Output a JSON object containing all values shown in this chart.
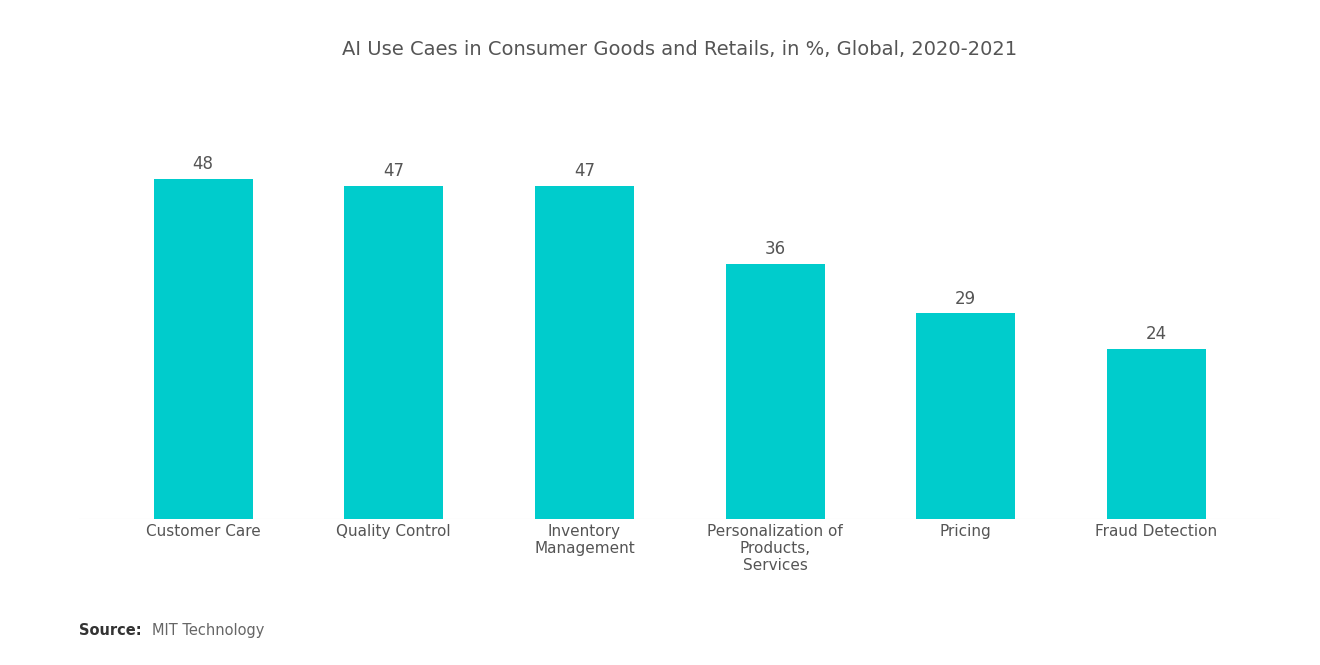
{
  "title": "AI Use Caes in Consumer Goods and Retails, in %, Global, 2020-2021",
  "categories": [
    "Customer Care",
    "Quality Control",
    "Inventory\nManagement",
    "Personalization of\nProducts,\nServices",
    "Pricing",
    "Fraud Detection"
  ],
  "values": [
    48,
    47,
    47,
    36,
    29,
    24
  ],
  "bar_color": "#00CCCC",
  "value_labels": [
    "48",
    "47",
    "47",
    "36",
    "29",
    "24"
  ],
  "ylim": [
    0,
    62
  ],
  "background_color": "#ffffff",
  "title_fontsize": 14,
  "label_fontsize": 11,
  "value_fontsize": 12,
  "bar_width": 0.52
}
